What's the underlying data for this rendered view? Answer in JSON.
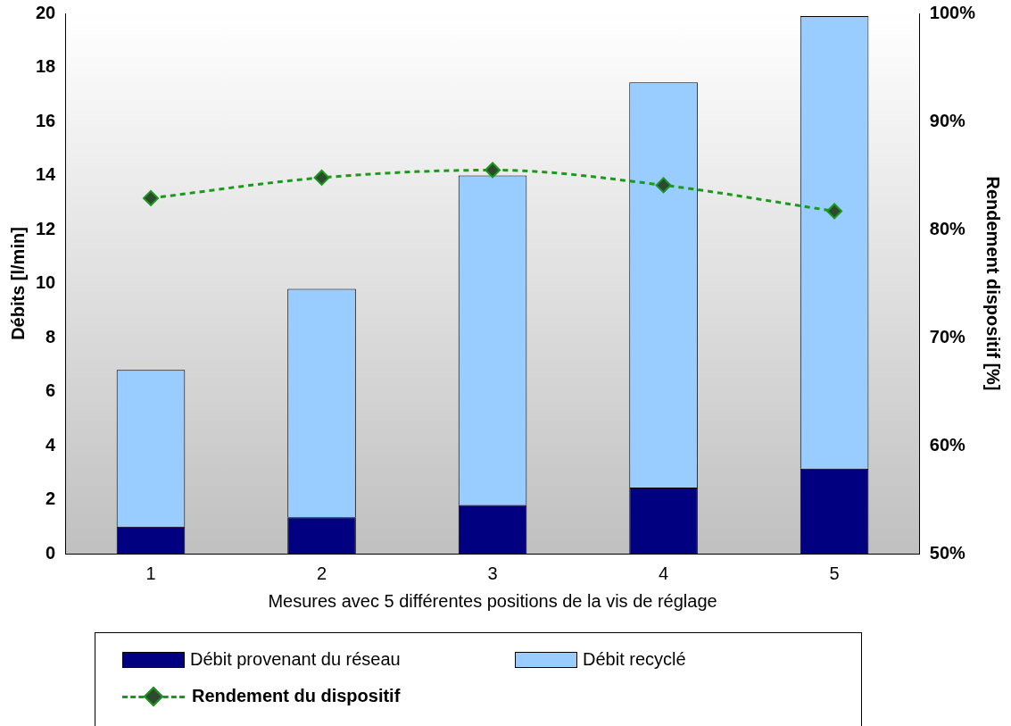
{
  "chart_data": {
    "type": "bar",
    "stacked": true,
    "categories": [
      "1",
      "2",
      "3",
      "4",
      "5"
    ],
    "xlabel": "Mesures avec 5 différentes positions de la vis de réglage",
    "ylabel": "Débits [l/min]",
    "y2label": "Rendement dispositif [%]",
    "series": [
      {
        "name": "Débit provenant du réseau",
        "color": "#000080",
        "values": [
          1.0,
          1.35,
          1.8,
          2.45,
          3.15
        ]
      },
      {
        "name": "Débit recyclé",
        "color": "#99ccff",
        "values": [
          5.8,
          8.45,
          12.2,
          15.0,
          16.75
        ]
      },
      {
        "name": "Rendement du dispositif",
        "type": "line",
        "axis": "y2",
        "color": "#1a9a1a",
        "marker": "diamond",
        "line_style": "dashed",
        "values": [
          82.9,
          84.8,
          85.5,
          84.1,
          81.7
        ]
      }
    ],
    "ylim": [
      0,
      20
    ],
    "yticks": [
      0,
      2,
      4,
      6,
      8,
      10,
      12,
      14,
      16,
      18,
      20
    ],
    "y2lim": [
      50,
      100
    ],
    "y2ticks": [
      {
        "value": 50,
        "label": "50%"
      },
      {
        "value": 60,
        "label": "60%"
      },
      {
        "value": 70,
        "label": "70%"
      },
      {
        "value": 80,
        "label": "80%"
      },
      {
        "value": 90,
        "label": "90%"
      },
      {
        "value": 100,
        "label": "100%"
      }
    ],
    "grid": false,
    "legend": "bottom"
  }
}
